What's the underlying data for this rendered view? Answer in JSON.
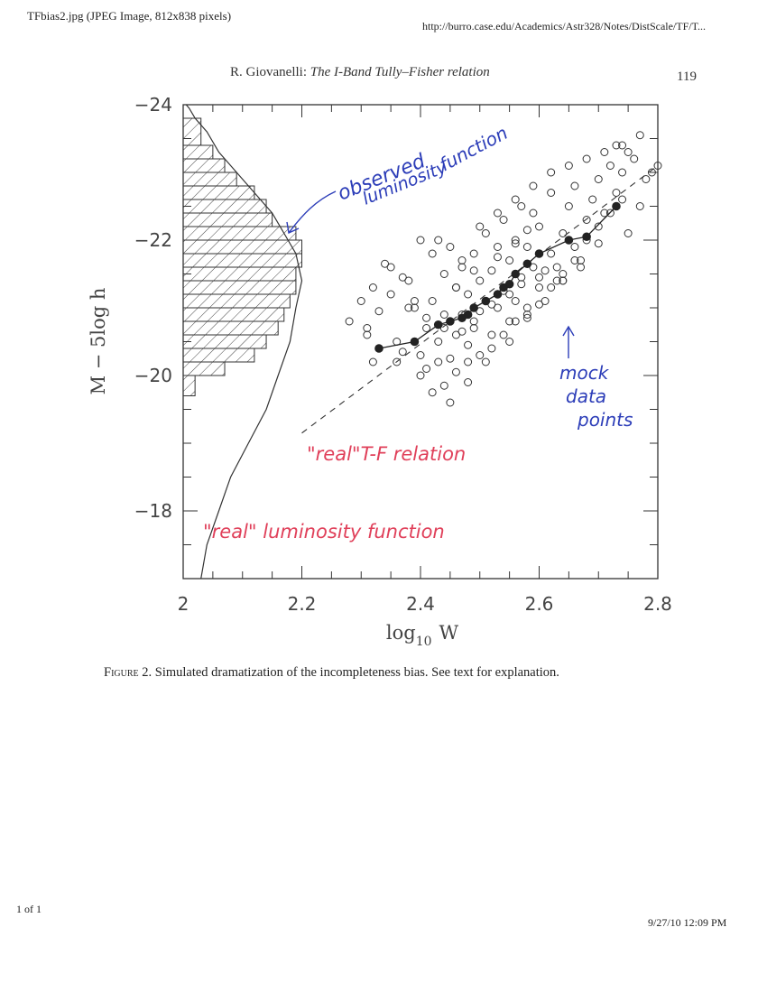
{
  "header": {
    "file_title": "TFbias2.jpg (JPEG Image, 812x838 pixels)",
    "url": "http://burro.case.edu/Academics/Astr328/Notes/DistScale/TF/T..."
  },
  "running_head": {
    "author": "R. Giovanelli:",
    "title": "The I-Band Tully–Fisher relation",
    "page_number": "119"
  },
  "caption": {
    "label": "Figure 2.",
    "text": "Simulated dramatization of the incompleteness bias. See text for explanation."
  },
  "footer": {
    "page_count": "1 of 1",
    "timestamp": "9/27/10 12:09 PM"
  },
  "chart_data": {
    "type": "scatter",
    "xlabel_base": "log",
    "xlabel_sub": "10",
    "xlabel_var": "W",
    "ylabel": "M − 5log h",
    "xlim": [
      2.0,
      2.8
    ],
    "ylim": [
      -17.0,
      -24.0
    ],
    "xticks": [
      2.0,
      2.2,
      2.4,
      2.6,
      2.8
    ],
    "xtick_labels": [
      "2",
      "2.2",
      "2.4",
      "2.6",
      "2.8"
    ],
    "yticks": [
      -24,
      -22,
      -20,
      -18
    ],
    "ytick_labels": [
      "−24",
      "−22",
      "−20",
      "−18"
    ],
    "annotations": {
      "observed_1": "observed",
      "observed_2": "luminosity",
      "observed_3": "function",
      "mock_1": "mock",
      "mock_2": "data",
      "mock_3": "points",
      "real_tf": "\"real\"T-F relation",
      "real_lf": "\"real\" luminosity function"
    },
    "histogram": {
      "edges": [
        -19.7,
        -20.0,
        -20.2,
        -20.4,
        -20.6,
        -20.8,
        -21.0,
        -21.2,
        -21.4,
        -21.6,
        -21.8,
        -22.0,
        -22.2,
        -22.4,
        -22.6,
        -22.8,
        -23.0,
        -23.2,
        -23.4,
        -23.8
      ],
      "values": [
        2.02,
        2.07,
        2.12,
        2.14,
        2.16,
        2.17,
        2.18,
        2.19,
        2.19,
        2.2,
        2.2,
        2.19,
        2.15,
        2.14,
        2.12,
        2.09,
        2.07,
        2.05,
        2.03
      ]
    },
    "real_lf_curve": {
      "x": [
        2.03,
        2.04,
        2.06,
        2.08,
        2.11,
        2.14,
        2.16,
        2.18,
        2.19,
        2.2,
        2.19,
        2.17,
        2.15,
        2.12,
        2.09,
        2.06,
        2.04,
        2.02,
        2.01,
        2.005
      ],
      "y": [
        -17.0,
        -17.5,
        -18.0,
        -18.5,
        -19.0,
        -19.5,
        -20.0,
        -20.5,
        -21.0,
        -21.4,
        -21.8,
        -22.1,
        -22.4,
        -22.7,
        -23.0,
        -23.3,
        -23.6,
        -23.8,
        -23.95,
        -24.0
      ]
    },
    "real_tf_relation": {
      "x": [
        2.2,
        2.8
      ],
      "y": [
        -19.15,
        -23.1
      ]
    },
    "mean_points": {
      "x": [
        2.33,
        2.39,
        2.43,
        2.45,
        2.47,
        2.48,
        2.49,
        2.51,
        2.53,
        2.54,
        2.55,
        2.56,
        2.58,
        2.6,
        2.65,
        2.68,
        2.73
      ],
      "y": [
        -20.4,
        -20.5,
        -20.75,
        -20.8,
        -20.85,
        -20.9,
        -21.0,
        -21.1,
        -21.2,
        -21.3,
        -21.35,
        -21.5,
        -21.65,
        -21.8,
        -22.0,
        -22.05,
        -22.5
      ]
    },
    "data_points": {
      "x": [
        2.28,
        2.3,
        2.31,
        2.32,
        2.32,
        2.33,
        2.35,
        2.36,
        2.36,
        2.38,
        2.38,
        2.39,
        2.4,
        2.41,
        2.42,
        2.42,
        2.43,
        2.44,
        2.44,
        2.45,
        2.45,
        2.46,
        2.46,
        2.47,
        2.47,
        2.48,
        2.48,
        2.49,
        2.49,
        2.5,
        2.5,
        2.51,
        2.51,
        2.52,
        2.52,
        2.53,
        2.53,
        2.54,
        2.54,
        2.55,
        2.55,
        2.56,
        2.56,
        2.57,
        2.57,
        2.58,
        2.58,
        2.59,
        2.59,
        2.6,
        2.6,
        2.61,
        2.62,
        2.62,
        2.63,
        2.64,
        2.65,
        2.66,
        2.66,
        2.67,
        2.68,
        2.69,
        2.7,
        2.71,
        2.72,
        2.73,
        2.74,
        2.75,
        2.76,
        2.77,
        2.79,
        2.8,
        2.37,
        2.4,
        2.42,
        2.44,
        2.46,
        2.48,
        2.5,
        2.52,
        2.54,
        2.56,
        2.58,
        2.6,
        2.62,
        2.64,
        2.66,
        2.68,
        2.7,
        2.72,
        2.74,
        2.4,
        2.43,
        2.47,
        2.5,
        2.53,
        2.56,
        2.59,
        2.62,
        2.65,
        2.68,
        2.71,
        2.74,
        2.77,
        2.45,
        2.48,
        2.51,
        2.55,
        2.58,
        2.61,
        2.64,
        2.67,
        2.7,
        2.39,
        2.41,
        2.44,
        2.47,
        2.49,
        2.52,
        2.55,
        2.57,
        2.6,
        2.63,
        2.46,
        2.49,
        2.53,
        2.56,
        2.58,
        2.34,
        2.37,
        2.43,
        2.64,
        2.73,
        2.78,
        2.75,
        2.31,
        2.35,
        2.41
      ],
      "y": [
        -20.8,
        -21.1,
        -20.6,
        -20.2,
        -21.3,
        -20.95,
        -21.6,
        -20.2,
        -20.5,
        -21.0,
        -21.4,
        -21.1,
        -20.3,
        -20.7,
        -21.8,
        -21.1,
        -20.5,
        -20.9,
        -21.5,
        -20.25,
        -21.9,
        -20.6,
        -21.3,
        -20.9,
        -21.6,
        -20.45,
        -21.2,
        -20.7,
        -21.8,
        -20.95,
        -21.4,
        -21.1,
        -22.1,
        -20.6,
        -21.55,
        -21.0,
        -21.9,
        -21.25,
        -22.3,
        -20.8,
        -21.7,
        -21.1,
        -22.0,
        -21.45,
        -22.5,
        -21.0,
        -21.9,
        -21.6,
        -22.4,
        -21.3,
        -22.2,
        -21.55,
        -21.8,
        -22.7,
        -21.4,
        -22.1,
        -22.5,
        -21.9,
        -22.8,
        -21.6,
        -22.3,
        -22.6,
        -22.9,
        -22.4,
        -23.1,
        -22.7,
        -23.0,
        -22.1,
        -23.2,
        -22.5,
        -23.0,
        -23.1,
        -20.35,
        -20.0,
        -19.75,
        -19.85,
        -20.05,
        -20.2,
        -20.3,
        -20.4,
        -20.6,
        -20.8,
        -20.9,
        -21.05,
        -21.3,
        -21.5,
        -21.7,
        -22.0,
        -22.2,
        -22.4,
        -22.6,
        -22.0,
        -22.0,
        -21.7,
        -22.2,
        -22.4,
        -22.6,
        -22.8,
        -23.0,
        -23.1,
        -23.2,
        -23.3,
        -23.4,
        -23.55,
        -19.6,
        -19.9,
        -20.2,
        -20.5,
        -20.85,
        -21.1,
        -21.4,
        -21.7,
        -21.95,
        -21.0,
        -20.85,
        -20.7,
        -20.65,
        -20.8,
        -21.05,
        -21.2,
        -21.35,
        -21.45,
        -21.6,
        -21.3,
        -21.55,
        -21.75,
        -21.95,
        -22.15,
        -21.65,
        -21.45,
        -20.2,
        -21.4,
        -23.4,
        -22.9,
        -23.3,
        -20.7,
        -21.2,
        -20.1
      ]
    }
  }
}
